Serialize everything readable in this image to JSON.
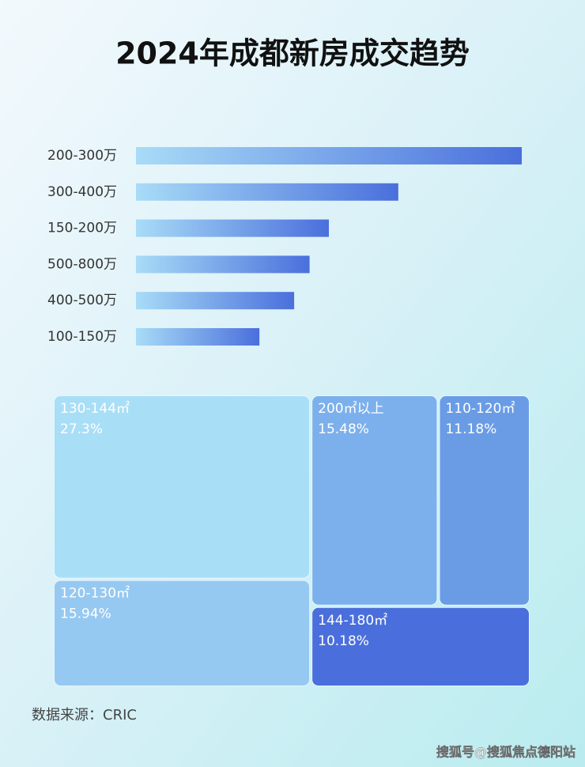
{
  "title": "2024年成都新房成交趋势",
  "chart_data": [
    {
      "type": "bar",
      "orientation": "horizontal",
      "categories": [
        "200-300万",
        "300-400万",
        "150-200万",
        "500-800万",
        "400-500万",
        "100-150万"
      ],
      "values": [
        100,
        68,
        50,
        45,
        41,
        32
      ],
      "color": "#4a6fdc"
    },
    {
      "type": "treemap",
      "categories": [
        "130-144㎡",
        "200㎡以上",
        "110-120㎡",
        "120-130㎡",
        "144-180㎡"
      ],
      "values": [
        27.3,
        15.48,
        11.18,
        15.94,
        10.18
      ],
      "value_labels": [
        "27.3%",
        "15.48%",
        "11.18%",
        "15.94%",
        "10.18%"
      ],
      "colors": [
        "#a9def7",
        "#7cb0ec",
        "#6a9ce6",
        "#96c9f1",
        "#4a6fdc"
      ]
    }
  ],
  "source": "数据来源：CRIC",
  "watermark": "搜狐号@搜狐焦点德阳站"
}
